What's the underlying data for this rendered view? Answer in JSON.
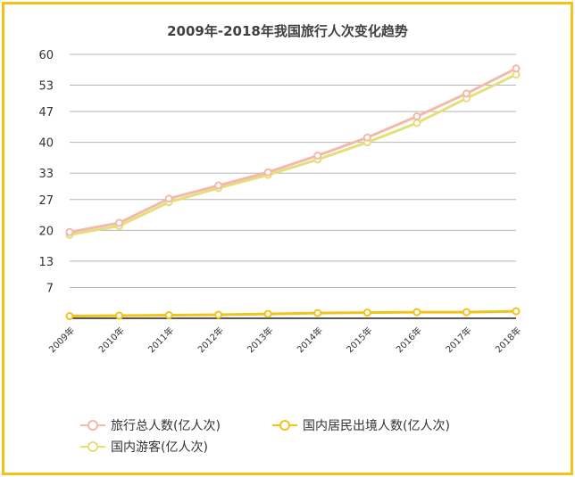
{
  "chart_data": {
    "type": "line",
    "title": "2009年-2018年我国旅行人次变化趋势",
    "categories": [
      "2009年",
      "2010年",
      "2011年",
      "2012年",
      "2013年",
      "2014年",
      "2015年",
      "2016年",
      "2017年",
      "2018年"
    ],
    "ytick_labels": [
      "7",
      "13",
      "20",
      "27",
      "33",
      "40",
      "47",
      "53",
      "60"
    ],
    "ylim": [
      0,
      60
    ],
    "grid": true,
    "legend_position": "bottom",
    "series": [
      {
        "name": "旅行总人数(亿人次)",
        "color": "#f3b9aa",
        "values": [
          19.6,
          21.7,
          27.2,
          30.2,
          33.2,
          37.0,
          41.1,
          45.9,
          51.1,
          56.8
        ]
      },
      {
        "name": "国内游客(亿人次)",
        "color": "#e3e07a",
        "values": [
          19.0,
          21.0,
          26.4,
          29.6,
          32.6,
          36.1,
          40.0,
          44.4,
          50.0,
          55.4
        ]
      },
      {
        "name": "国内居民出境人数(亿人次)",
        "color": "#f3c21b",
        "values": [
          0.5,
          0.6,
          0.7,
          0.8,
          1.0,
          1.2,
          1.3,
          1.4,
          1.4,
          1.6
        ]
      }
    ]
  }
}
